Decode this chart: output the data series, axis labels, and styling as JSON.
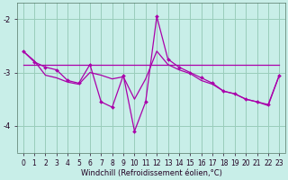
{
  "xlabel": "Windchill (Refroidissement éolien,°C)",
  "background_color": "#c8eee8",
  "grid_color": "#99ccbb",
  "line_color": "#aa00aa",
  "x_hours": [
    0,
    1,
    2,
    3,
    4,
    5,
    6,
    7,
    8,
    9,
    10,
    11,
    12,
    13,
    14,
    15,
    16,
    17,
    18,
    19,
    20,
    21,
    22,
    23
  ],
  "line_markers": [
    -2.6,
    -2.8,
    -2.9,
    -2.95,
    -3.15,
    -3.2,
    -2.85,
    -3.55,
    -3.65,
    -3.05,
    -4.1,
    -3.55,
    -1.95,
    -2.75,
    -2.9,
    -3.0,
    -3.1,
    -3.2,
    -3.35,
    -3.4,
    -3.5,
    -3.55,
    -3.6,
    -3.05
  ],
  "line_flat": [
    -2.85,
    -2.85,
    -2.85,
    -2.85,
    -2.85,
    -2.85,
    -2.85,
    -2.85,
    -2.85,
    -2.85,
    -2.85,
    -2.85,
    -2.85,
    -2.85,
    -2.85,
    -2.85,
    -2.85,
    -2.85,
    -2.85,
    -2.85,
    -2.85,
    -2.85,
    -2.85,
    -2.85
  ],
  "line_smooth": [
    -2.6,
    -2.78,
    -3.05,
    -3.1,
    -3.18,
    -3.22,
    -3.0,
    -3.05,
    -3.12,
    -3.08,
    -3.5,
    -3.12,
    -2.6,
    -2.85,
    -2.95,
    -3.02,
    -3.15,
    -3.22,
    -3.35,
    -3.4,
    -3.5,
    -3.55,
    -3.62,
    -3.05
  ],
  "ylim": [
    -4.5,
    -1.7
  ],
  "yticks": [
    -4.0,
    -3.0,
    -2.0
  ],
  "xlim": [
    -0.5,
    23.5
  ],
  "xtick_labels": [
    "0",
    "1",
    "2",
    "3",
    "4",
    "5",
    "6",
    "7",
    "8",
    "9",
    "10",
    "11",
    "12",
    "13",
    "14",
    "15",
    "16",
    "17",
    "18",
    "19",
    "20",
    "21",
    "22",
    "23"
  ],
  "tick_fontsize": 5.5,
  "xlabel_fontsize": 6.0
}
